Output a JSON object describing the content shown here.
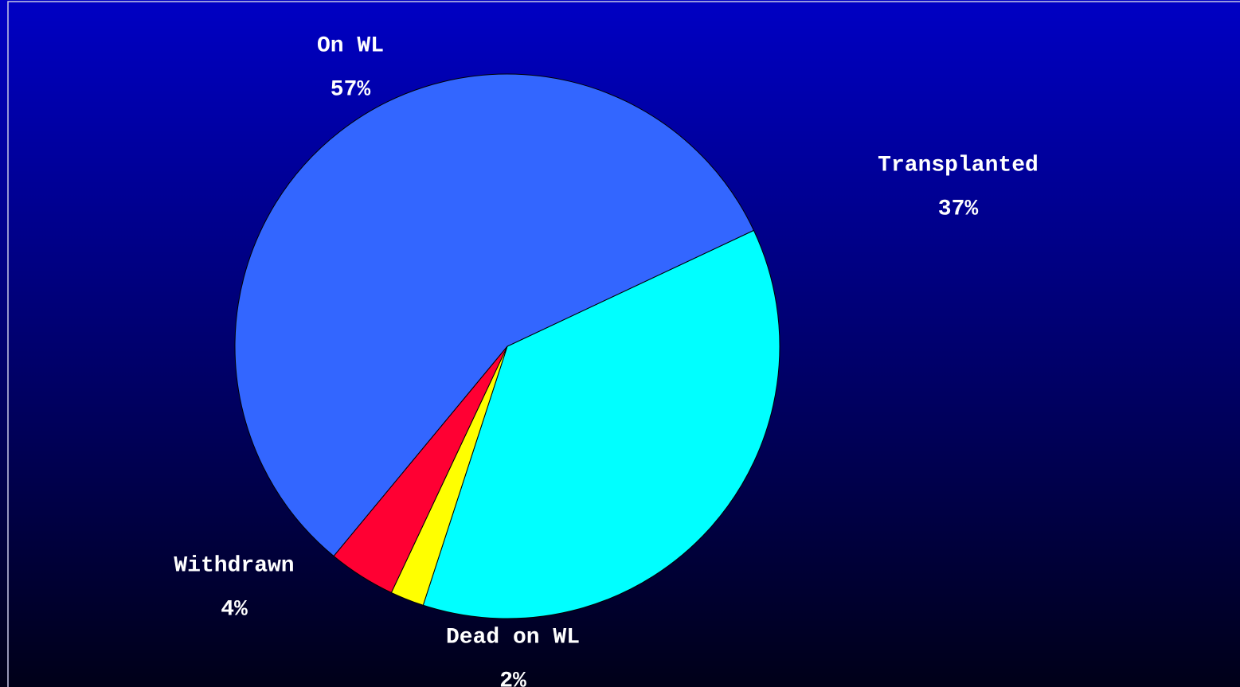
{
  "chart_data": {
    "type": "pie",
    "categories": [
      "Transplanted",
      "Dead on WL",
      "Withdrawn",
      "On WL"
    ],
    "values": [
      37,
      2,
      4,
      57
    ],
    "value_labels": [
      "37%",
      "2%",
      "4%",
      "57%"
    ],
    "colors": [
      "#00ffff",
      "#ffff00",
      "#ff0033",
      "#3366ff"
    ]
  }
}
